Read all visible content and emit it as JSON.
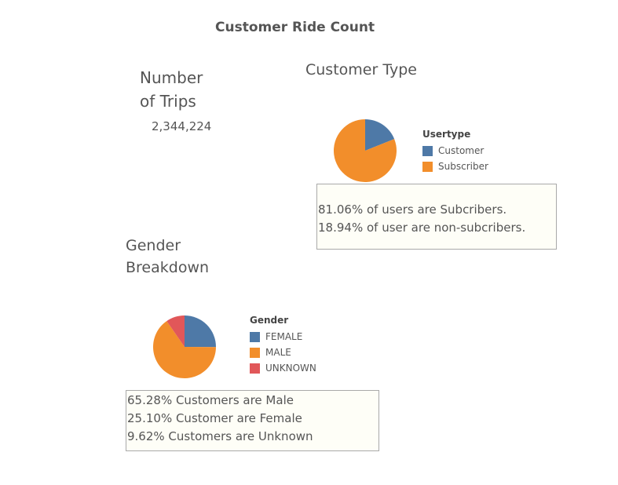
{
  "dashboard": {
    "title": "Customer Ride Count"
  },
  "trips": {
    "title_line1": "Number",
    "title_line2": "of Trips",
    "value": "2,344,224"
  },
  "customer_type": {
    "title": "Customer Type",
    "legend_title": "Usertype",
    "note_lines": [
      "81.06% of users are Subcribers.",
      "18.94% of user are non-subcribers."
    ]
  },
  "gender": {
    "title_line1": "Gender",
    "title_line2": "Breakdown",
    "legend_title": "Gender",
    "note_lines": [
      "65.28% Customers are Male",
      "25.10% Customer are Female",
      "9.62% Customers are Unknown"
    ]
  },
  "chart_data": [
    {
      "type": "pie",
      "legend_title": "Usertype",
      "legend_position": "right",
      "slices": [
        {
          "label": "Customer",
          "value": 18.94,
          "color": "#4e79a7"
        },
        {
          "label": "Subscriber",
          "value": 81.06,
          "color": "#f28e2b"
        }
      ]
    },
    {
      "type": "pie",
      "legend_title": "Gender",
      "legend_position": "right",
      "slices": [
        {
          "label": "FEMALE",
          "value": 25.1,
          "color": "#4e79a7"
        },
        {
          "label": "MALE",
          "value": 65.28,
          "color": "#f28e2b"
        },
        {
          "label": "UNKNOWN",
          "value": 9.62,
          "color": "#e15759"
        }
      ]
    }
  ]
}
